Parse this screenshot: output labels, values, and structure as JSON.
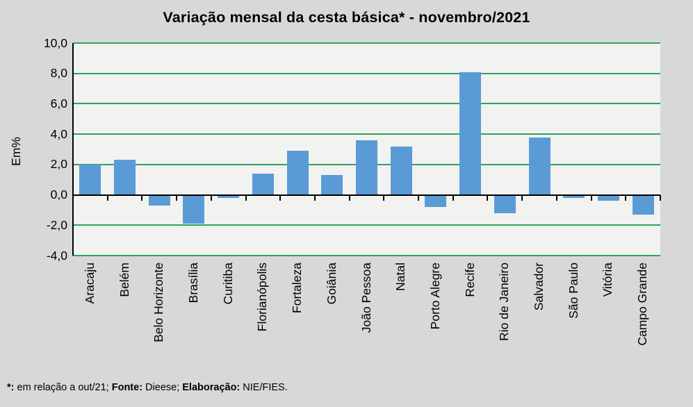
{
  "chart_data": {
    "type": "bar",
    "title": "Variação mensal da cesta básica* - novembro/2021",
    "ylabel": "Em%",
    "xlabel": "",
    "categories": [
      "Aracaju",
      "Belém",
      "Belo Horizonte",
      "Brasília",
      "Curitiba",
      "Florianópolis",
      "Fortaleza",
      "Goiânia",
      "João Pessoa",
      "Natal",
      "Porto Alegre",
      "Recife",
      "Rio de Janeiro",
      "Salvador",
      "São Paulo",
      "Vitória",
      "Campo Grande"
    ],
    "values": [
      2.0,
      2.3,
      -0.7,
      -1.9,
      -0.2,
      1.4,
      2.9,
      1.3,
      3.6,
      3.2,
      -0.8,
      8.1,
      -1.2,
      3.8,
      -0.2,
      -0.4,
      -1.3
    ],
    "ylim": [
      -4,
      10
    ],
    "grid": true,
    "legend": false,
    "yticks": [
      {
        "value": 10,
        "label": "10,0"
      },
      {
        "value": 8,
        "label": "8,0"
      },
      {
        "value": 6,
        "label": "6,0"
      },
      {
        "value": 4,
        "label": "4,0"
      },
      {
        "value": 2,
        "label": "2,0"
      },
      {
        "value": 0,
        "label": "0,0"
      },
      {
        "value": -2,
        "label": "-2,0"
      },
      {
        "value": -4,
        "label": "-4,0"
      }
    ],
    "colors": {
      "bar": "#5B9BD5",
      "grid": "#2CA45C",
      "axis": "#000000",
      "plot_bg": "#F2F2F1",
      "canvas_bg": "#D8D8D8",
      "text": "#000000"
    }
  },
  "footnote": {
    "segments": [
      {
        "text": "*:",
        "bold": true
      },
      {
        "text": " em relação a out/21; ",
        "bold": false
      },
      {
        "text": "Fonte:",
        "bold": true
      },
      {
        "text": " Dieese; ",
        "bold": false
      },
      {
        "text": "Elaboração:",
        "bold": true
      },
      {
        "text": " NIE/FIES.",
        "bold": false
      }
    ]
  }
}
